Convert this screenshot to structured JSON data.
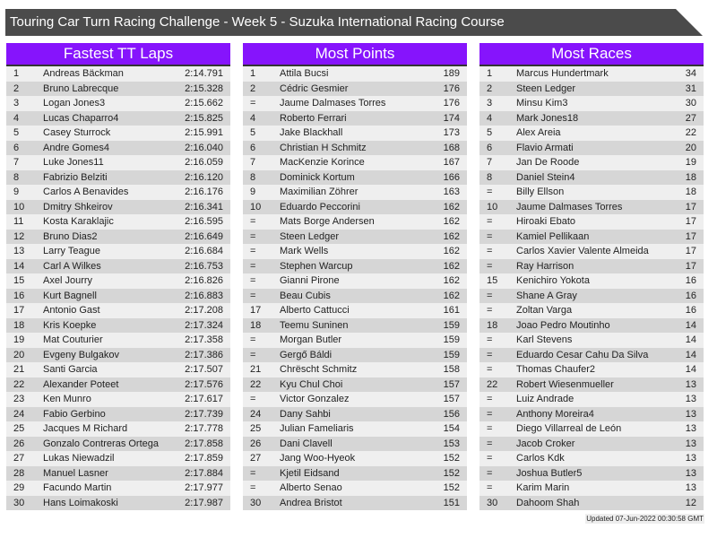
{
  "title": "Touring Car Turn Racing Challenge - Week 5 - Suzuka International Racing Course",
  "colors": {
    "header": "#8614fc",
    "title_bar": "#4b4b4b"
  },
  "tables": [
    {
      "title": "Fastest TT Laps",
      "rows": [
        [
          "1",
          "Andreas Bäckman",
          "2:14.791"
        ],
        [
          "2",
          "Bruno Labrecque",
          "2:15.328"
        ],
        [
          "3",
          "Logan Jones3",
          "2:15.662"
        ],
        [
          "4",
          "Lucas Chaparro4",
          "2:15.825"
        ],
        [
          "5",
          "Casey Sturrock",
          "2:15.991"
        ],
        [
          "6",
          "Andre Gomes4",
          "2:16.040"
        ],
        [
          "7",
          "Luke Jones11",
          "2:16.059"
        ],
        [
          "8",
          "Fabrizio Belziti",
          "2:16.120"
        ],
        [
          "9",
          "Carlos A Benavides",
          "2:16.176"
        ],
        [
          "10",
          "Dmitry Shkeirov",
          "2:16.341"
        ],
        [
          "11",
          "Kosta Karaklajic",
          "2:16.595"
        ],
        [
          "12",
          "Bruno Dias2",
          "2:16.649"
        ],
        [
          "13",
          "Larry Teague",
          "2:16.684"
        ],
        [
          "14",
          "Carl A Wilkes",
          "2:16.753"
        ],
        [
          "15",
          "Axel Jourry",
          "2:16.826"
        ],
        [
          "16",
          "Kurt Bagnell",
          "2:16.883"
        ],
        [
          "17",
          "Antonio Gast",
          "2:17.208"
        ],
        [
          "18",
          "Kris Koepke",
          "2:17.324"
        ],
        [
          "19",
          "Mat Couturier",
          "2:17.358"
        ],
        [
          "20",
          "Evgeny Bulgakov",
          "2:17.386"
        ],
        [
          "21",
          "Santi Garcia",
          "2:17.507"
        ],
        [
          "22",
          "Alexander Poteet",
          "2:17.576"
        ],
        [
          "23",
          "Ken Munro",
          "2:17.617"
        ],
        [
          "24",
          "Fabio Gerbino",
          "2:17.739"
        ],
        [
          "25",
          "Jacques M Richard",
          "2:17.778"
        ],
        [
          "26",
          "Gonzalo Contreras Ortega",
          "2:17.858"
        ],
        [
          "27",
          "Lukas Niewadzil",
          "2:17.859"
        ],
        [
          "28",
          "Manuel Lasner",
          "2:17.884"
        ],
        [
          "29",
          "Facundo Martin",
          "2:17.977"
        ],
        [
          "30",
          "Hans Loimakoski",
          "2:17.987"
        ]
      ]
    },
    {
      "title": "Most Points",
      "rows": [
        [
          "1",
          "Attila Bucsi",
          "189"
        ],
        [
          "2",
          "Cédric Gesmier",
          "176"
        ],
        [
          "=",
          "Jaume Dalmases Torres",
          "176"
        ],
        [
          "4",
          "Roberto Ferrari",
          "174"
        ],
        [
          "5",
          "Jake Blackhall",
          "173"
        ],
        [
          "6",
          "Christian H Schmitz",
          "168"
        ],
        [
          "7",
          "MacKenzie Korince",
          "167"
        ],
        [
          "8",
          "Dominick Kortum",
          "166"
        ],
        [
          "9",
          "Maximilian Zöhrer",
          "163"
        ],
        [
          "10",
          "Eduardo Peccorini",
          "162"
        ],
        [
          "=",
          "Mats Borge Andersen",
          "162"
        ],
        [
          "=",
          "Steen Ledger",
          "162"
        ],
        [
          "=",
          "Mark Wells",
          "162"
        ],
        [
          "=",
          "Stephen Warcup",
          "162"
        ],
        [
          "=",
          "Gianni Pirone",
          "162"
        ],
        [
          "=",
          "Beau Cubis",
          "162"
        ],
        [
          "17",
          "Alberto Cattucci",
          "161"
        ],
        [
          "18",
          "Teemu Suninen",
          "159"
        ],
        [
          "=",
          "Morgan Butler",
          "159"
        ],
        [
          "=",
          "Gergő Báldi",
          "159"
        ],
        [
          "21",
          "Chrëscht Schmitz",
          "158"
        ],
        [
          "22",
          "Kyu Chul Choi",
          "157"
        ],
        [
          "=",
          "Victor Gonzalez",
          "157"
        ],
        [
          "24",
          "Dany Sahbi",
          "156"
        ],
        [
          "25",
          "Julian Fameliaris",
          "154"
        ],
        [
          "26",
          "Dani Clavell",
          "153"
        ],
        [
          "27",
          "Jang Woo-Hyeok",
          "152"
        ],
        [
          "=",
          "Kjetil Eidsand",
          "152"
        ],
        [
          "=",
          "Alberto Senao",
          "152"
        ],
        [
          "30",
          "Andrea Bristot",
          "151"
        ]
      ]
    },
    {
      "title": "Most Races",
      "rows": [
        [
          "1",
          "Marcus Hundertmark",
          "34"
        ],
        [
          "2",
          "Steen Ledger",
          "31"
        ],
        [
          "3",
          "Minsu Kim3",
          "30"
        ],
        [
          "4",
          "Mark Jones18",
          "27"
        ],
        [
          "5",
          "Alex Areia",
          "22"
        ],
        [
          "6",
          "Flavio Armati",
          "20"
        ],
        [
          "7",
          "Jan De Roode",
          "19"
        ],
        [
          "8",
          "Daniel Stein4",
          "18"
        ],
        [
          "=",
          "Billy Ellson",
          "18"
        ],
        [
          "10",
          "Jaume Dalmases Torres",
          "17"
        ],
        [
          "=",
          "Hiroaki Ebato",
          "17"
        ],
        [
          "=",
          "Kamiel Pellikaan",
          "17"
        ],
        [
          "=",
          "Carlos Xavier Valente Almeida",
          "17"
        ],
        [
          "=",
          "Ray Harrison",
          "17"
        ],
        [
          "15",
          "Kenichiro Yokota",
          "16"
        ],
        [
          "=",
          "Shane A Gray",
          "16"
        ],
        [
          "=",
          "Zoltan Varga",
          "16"
        ],
        [
          "18",
          "Joao Pedro Moutinho",
          "14"
        ],
        [
          "=",
          "Karl Stevens",
          "14"
        ],
        [
          "=",
          "Eduardo Cesar Cahu Da Silva",
          "14"
        ],
        [
          "=",
          "Thomas Chaufer2",
          "14"
        ],
        [
          "22",
          "Robert Wiesenmueller",
          "13"
        ],
        [
          "=",
          "Luiz Andrade",
          "13"
        ],
        [
          "=",
          "Anthony Moreira4",
          "13"
        ],
        [
          "=",
          "Diego Villarreal de León",
          "13"
        ],
        [
          "=",
          "Jacob Croker",
          "13"
        ],
        [
          "=",
          "Carlos Kdk",
          "13"
        ],
        [
          "=",
          "Joshua Butler5",
          "13"
        ],
        [
          "=",
          "Karim Marin",
          "13"
        ],
        [
          "30",
          "Dahoom Shah",
          "12"
        ]
      ]
    }
  ],
  "updated": "Updated 07-Jun-2022 00:30:58 GMT"
}
